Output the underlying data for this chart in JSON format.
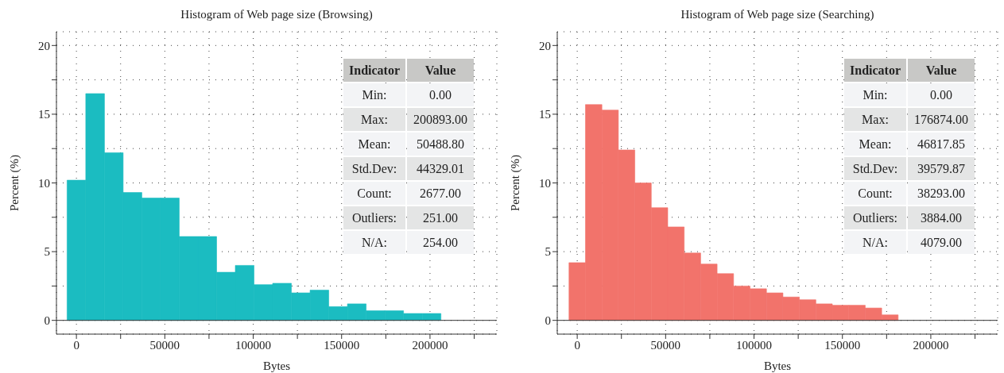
{
  "chart_data": [
    {
      "type": "histogram",
      "title": "Histogram of Web page size (Browsing)",
      "xlabel": "Bytes",
      "ylabel": "Percent (%)",
      "color": "#1bbcc1",
      "bins": [
        -5286,
        5287,
        15860,
        26433,
        37006,
        47579,
        58152,
        68725,
        79298,
        89871,
        100444,
        111017,
        121590,
        132163,
        142736,
        153309,
        163882,
        174455,
        185028,
        195601,
        206174
      ],
      "values": [
        10.2,
        16.5,
        12.2,
        9.3,
        8.9,
        8.9,
        6.1,
        6.1,
        3.5,
        4.0,
        2.6,
        2.7,
        2.0,
        2.2,
        1.0,
        1.2,
        0.7,
        0.7,
        0.5,
        0.5
      ],
      "xlim": [
        -11300,
        237800
      ],
      "xticks": [
        0,
        {
          "value": 25000,
          "label": null
        },
        50000,
        {
          "value": 75000,
          "label": null
        },
        100000,
        {
          "value": 125000,
          "label": null
        },
        150000,
        {
          "value": 175000,
          "label": null
        },
        200000,
        {
          "value": 225000,
          "label": null
        }
      ],
      "ylim": [
        -1,
        21
      ],
      "yticks": [
        0,
        {
          "value": 2.5,
          "label": null
        },
        5,
        {
          "value": 7.5,
          "label": null
        },
        10,
        {
          "value": 12.5,
          "label": null
        },
        15,
        {
          "value": 17.5,
          "label": null
        },
        20
      ],
      "grid": true,
      "ref_lines": [
        {
          "axis": "y",
          "value": 0,
          "label": null
        }
      ],
      "annotations": [
        "Indicator",
        "Value",
        "Min:",
        "0.00",
        "Max:",
        "200893.00",
        "Mean:",
        "50488.80",
        "Std.Dev:",
        "44329.01",
        "Count:",
        "2677.00",
        "Outliers:",
        "251.00",
        "N/A:",
        "254.00"
      ]
    },
    {
      "type": "histogram",
      "title": "Histogram of Web page size (Searching)",
      "xlabel": "Bytes",
      "ylabel": "Percent (%)",
      "color": "#f2736b",
      "bins": [
        -4655,
        4654,
        13963,
        23272,
        32581,
        41890,
        51199,
        60508,
        69817,
        79126,
        88435,
        97744,
        107053,
        116362,
        125671,
        134980,
        144289,
        153598,
        162907,
        172216,
        181525
      ],
      "values": [
        4.2,
        15.7,
        15.3,
        12.4,
        10.0,
        8.2,
        6.8,
        4.9,
        4.1,
        3.4,
        2.5,
        2.3,
        2.0,
        1.7,
        1.5,
        1.2,
        1.1,
        1.1,
        0.9,
        0.4
      ],
      "xlim": [
        -11300,
        237800
      ],
      "xticks": [
        0,
        {
          "value": 25000,
          "label": null
        },
        50000,
        {
          "value": 75000,
          "label": null
        },
        100000,
        {
          "value": 125000,
          "label": null
        },
        150000,
        {
          "value": 175000,
          "label": null
        },
        200000,
        {
          "value": 225000,
          "label": null
        }
      ],
      "ylim": [
        -1,
        21
      ],
      "yticks": [
        0,
        {
          "value": 2.5,
          "label": null
        },
        5,
        {
          "value": 7.5,
          "label": null
        },
        10,
        {
          "value": 12.5,
          "label": null
        },
        15,
        {
          "value": 17.5,
          "label": null
        },
        20
      ],
      "grid": true,
      "ref_lines": [
        {
          "axis": "y",
          "value": 0,
          "label": null
        }
      ],
      "annotations": [
        "Indicator",
        "Value",
        "Min:",
        "0.00",
        "Max:",
        "176874.00",
        "Mean:",
        "46817.85",
        "Std.Dev:",
        "39579.87",
        "Count:",
        "38293.00",
        "Outliers:",
        "3884.00",
        "N/A:",
        "4079.00"
      ]
    }
  ]
}
